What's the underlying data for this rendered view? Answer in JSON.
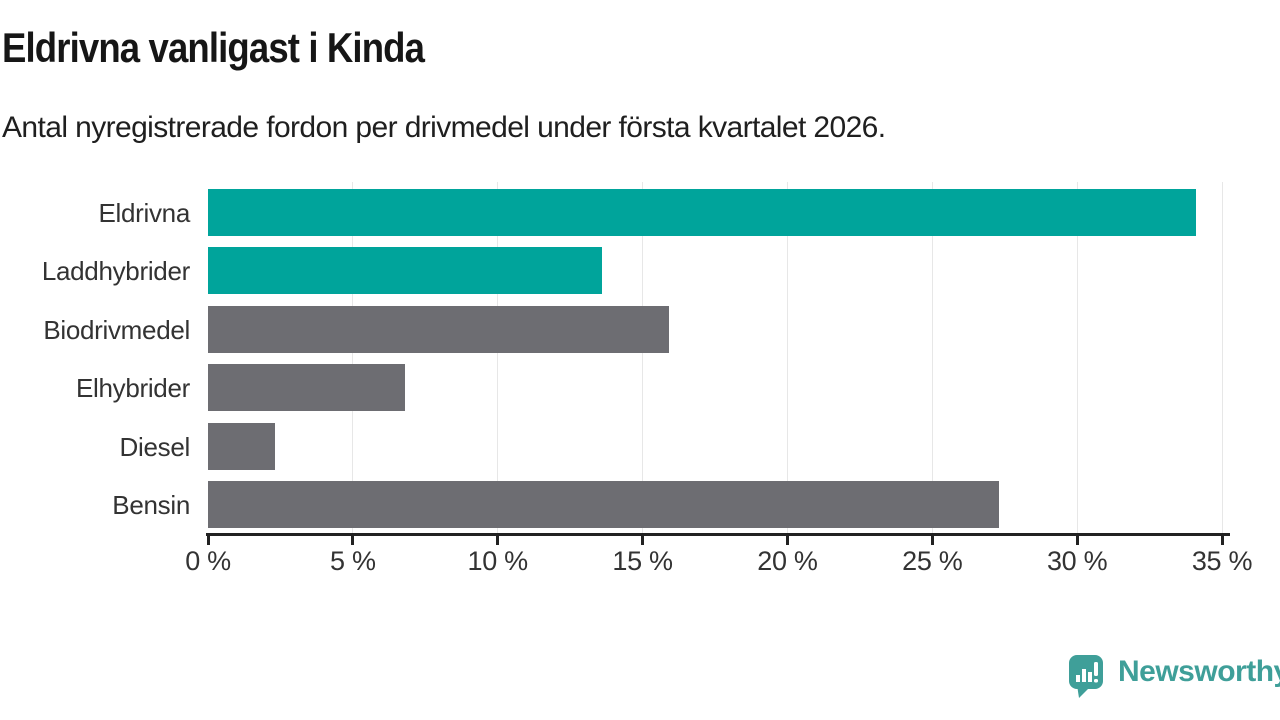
{
  "header": {
    "title": "Eldrivna vanligast i Kinda",
    "subtitle": "Antal nyregistrerade fordon per drivmedel under första kvartalet 2026."
  },
  "chart_data": {
    "type": "bar",
    "orientation": "horizontal",
    "title": "Eldrivna vanligast i Kinda",
    "subtitle": "Antal nyregistrerade fordon per drivmedel under första kvartalet 2026.",
    "categories": [
      "Eldrivna",
      "Laddhybrider",
      "Biodrivmedel",
      "Elhybrider",
      "Diesel",
      "Bensin"
    ],
    "values": [
      34.1,
      13.6,
      15.9,
      6.8,
      2.3,
      27.3
    ],
    "value_unit": "%",
    "bar_colors": [
      "#00a49b",
      "#00a49b",
      "#6d6d72",
      "#6d6d72",
      "#6d6d72",
      "#6d6d72"
    ],
    "highlight_color": "#00a49b",
    "default_color": "#6d6d72",
    "xlim": [
      0,
      35
    ],
    "x_ticks": [
      0,
      5,
      10,
      15,
      20,
      25,
      30,
      35
    ],
    "x_tick_format": "{v} %",
    "grid": true,
    "gridline_color": "#e7e7e7",
    "axis_color": "#222222",
    "legend": "none"
  },
  "footer": {
    "brand": "Newsworthy",
    "brand_color": "#3f9f99",
    "logo_icon": "bar-chart-speech-bubble-icon"
  }
}
